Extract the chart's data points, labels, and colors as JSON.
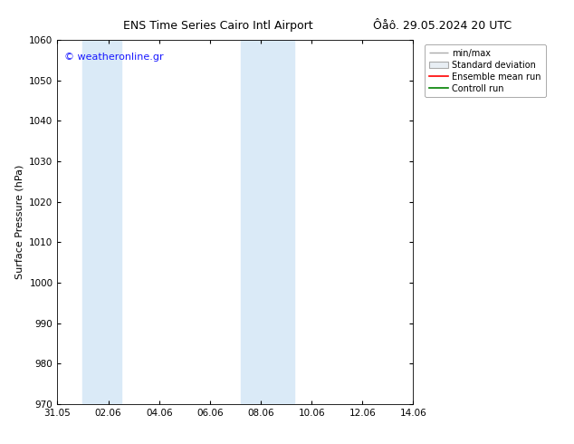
{
  "title_left": "ENS Time Series Cairo Intl Airport",
  "title_right": "Ôåô. 29.05.2024 20 UTC",
  "ylabel": "Surface Pressure (hPa)",
  "ylim": [
    970,
    1060
  ],
  "yticks": [
    970,
    980,
    990,
    1000,
    1010,
    1020,
    1030,
    1040,
    1050,
    1060
  ],
  "xlim": [
    0,
    14
  ],
  "xtick_labels": [
    "31.05",
    "02.06",
    "04.06",
    "06.06",
    "08.06",
    "10.06",
    "12.06",
    "14.06"
  ],
  "xtick_positions_days": [
    0,
    2,
    4,
    6,
    8,
    10,
    12,
    14
  ],
  "shaded_bands": [
    {
      "start_day": 1.0,
      "end_day": 2.5,
      "color": "#daeaf7"
    },
    {
      "start_day": 7.2,
      "end_day": 9.3,
      "color": "#daeaf7"
    }
  ],
  "watermark_text": "© weatheronline.gr",
  "watermark_color": "#1a1aff",
  "watermark_fontsize": 8,
  "legend_labels": [
    "min/max",
    "Standard deviation",
    "Ensemble mean run",
    "Controll run"
  ],
  "legend_colors": [
    "#aaaaaa",
    "#cccccc",
    "#ff0000",
    "#008000"
  ],
  "background_color": "#ffffff",
  "title_fontsize": 9,
  "axis_fontsize": 8,
  "tick_fontsize": 7.5
}
